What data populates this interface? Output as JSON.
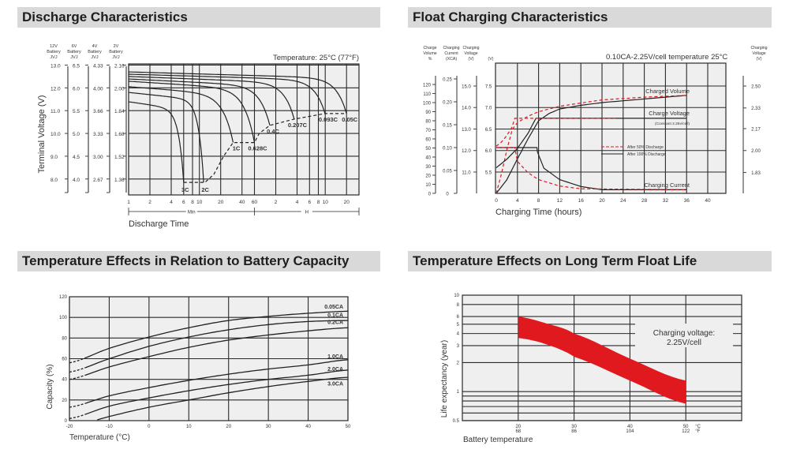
{
  "colors": {
    "header_bg": "#d9d9d9",
    "plot_bg": "#efefef",
    "grid": "#2a2a2a",
    "curve": "#222222",
    "accent_red": "#e0191f"
  },
  "chart_data": [
    {
      "type": "line",
      "title": "Discharge Characteristics",
      "subtitle": "Temperature: 25°C (77°F)",
      "xlabel": "Discharge Time",
      "ylabel": "Terminal Voltage (V)",
      "x_scale": "log",
      "x_unit_segments": [
        {
          "label": "Min",
          "from": 1,
          "to": 60
        },
        {
          "label": "H",
          "from": 60,
          "to": 1800
        }
      ],
      "x_ticks_minutes": [
        1,
        2,
        4,
        6,
        8,
        10,
        20,
        40,
        60,
        120,
        240,
        360,
        480,
        600,
        1200
      ],
      "x_tick_labels": [
        "1",
        "2",
        "4",
        "6",
        "8",
        "10",
        "20",
        "40",
        "60",
        "2",
        "4",
        "6",
        "8",
        "10",
        "20"
      ],
      "xlim_minutes": [
        1,
        1800
      ],
      "ylim": [
        7.3,
        13.05
      ],
      "grid": true,
      "voltage_scales": [
        {
          "header": [
            "12V",
            "Battery",
            "JVJ"
          ],
          "ticks": [
            "13.0",
            "12.0",
            "11.0",
            "10.0",
            "9.0",
            "8.0"
          ]
        },
        {
          "header": [
            "6V",
            "Battery",
            "JVJ"
          ],
          "ticks": [
            "6.5",
            "6.0",
            "5.5",
            "5.0",
            "4.5",
            "4.0"
          ]
        },
        {
          "header": [
            "4V",
            "Battery",
            "JVJ"
          ],
          "ticks": [
            "4.33",
            "4.00",
            "3.66",
            "3.33",
            "3.00",
            "2.67"
          ]
        },
        {
          "header": [
            "2V",
            "Battery",
            "JVJ"
          ],
          "ticks": [
            "2.16",
            "2.00",
            "1.84",
            "1.68",
            "1.52",
            "1.36"
          ]
        }
      ],
      "y_tick_values": [
        13,
        12,
        11,
        10,
        9,
        8
      ],
      "series": [
        {
          "name": "3C",
          "start_voltage": 11.39,
          "end_minutes": 6,
          "end_voltage": 7.85
        },
        {
          "name": "2C",
          "start_voltage": 11.8,
          "end_minutes": 11.5,
          "end_voltage": 7.85
        },
        {
          "name": "1C",
          "start_voltage": 12.05,
          "end_minutes": 30,
          "end_voltage": 9.6
        },
        {
          "name": "0.628C",
          "start_voltage": 12.29,
          "end_minutes": 60,
          "end_voltage": 9.6
        },
        {
          "name": "0.4C",
          "start_voltage": 12.39,
          "end_minutes": 99,
          "end_voltage": 10.35
        },
        {
          "name": "0.207C",
          "start_voltage": 12.5,
          "end_minutes": 219,
          "end_voltage": 10.63
        },
        {
          "name": "0.093C",
          "start_voltage": 12.6,
          "end_minutes": 597,
          "end_voltage": 10.87
        },
        {
          "name": "0.05C",
          "start_voltage": 12.7,
          "end_minutes": 1200,
          "end_voltage": 10.87
        }
      ],
      "final_voltage_line": [
        [
          6,
          7.85
        ],
        [
          12,
          7.85
        ],
        [
          16,
          8.2
        ],
        [
          22,
          9.0
        ],
        [
          30,
          9.6
        ],
        [
          60,
          9.6
        ],
        [
          70,
          10.0
        ],
        [
          99,
          10.35
        ],
        [
          219,
          10.63
        ],
        [
          597,
          10.87
        ],
        [
          1200,
          10.87
        ]
      ]
    },
    {
      "type": "line",
      "title": "Float Charging Characteristics",
      "subtitle": "0.10CA-2.25V/cell  temperature 25°C",
      "xlabel": "Charging Time (hours)",
      "xlim": [
        0,
        43.4
      ],
      "x_ticks": [
        0,
        4,
        8,
        12,
        16,
        20,
        24,
        28,
        32,
        36,
        40
      ],
      "grid": true,
      "axes": {
        "charge_volume": {
          "header": [
            "Charge",
            "Volume",
            "%"
          ],
          "ticks": [
            0,
            10,
            20,
            30,
            40,
            50,
            60,
            70,
            80,
            90,
            100,
            110,
            120
          ]
        },
        "charging_current": {
          "header": [
            "Charging",
            "Current",
            "(XCA)"
          ],
          "ticks": [
            "0",
            "0.05",
            "0.10",
            "0.15",
            "0.20",
            "0.25"
          ]
        },
        "charging_voltage_12v": {
          "header": [
            "Charging",
            "Voltage",
            "(V)"
          ],
          "ticks": [
            "11.0",
            "12.0",
            "13.0",
            "14.0",
            "15.0"
          ]
        },
        "charging_voltage_6v": {
          "header": [
            "(V)"
          ],
          "ticks": [
            "5.5",
            "6.0",
            "6.5",
            "7.0",
            "7.5"
          ]
        },
        "charging_voltage_cell": {
          "header": [
            "Charging",
            "Voltage",
            "(V)"
          ],
          "ticks": [
            "1.83",
            "2.00",
            "2.17",
            "2.33",
            "2.50"
          ]
        }
      },
      "labels": {
        "charged_volume": "Charged Volume",
        "charge_voltage": "Charge Voltage",
        "charge_voltage_note": "(Constant 2.25v/cell)",
        "charging_current": "Charging Current"
      },
      "legend": [
        {
          "name": "After  50% Discharge",
          "style": "dashed-red"
        },
        {
          "name": "After 100% Discharge",
          "style": "solid-black"
        }
      ],
      "series": [
        {
          "quantity": "charged_volume_percent",
          "condition": "After 100% Discharge",
          "points": [
            [
              0,
              0
            ],
            [
              2,
              15
            ],
            [
              4,
              38
            ],
            [
              6,
              60
            ],
            [
              8,
              80
            ],
            [
              10,
              88
            ],
            [
              12,
              93
            ],
            [
              16,
              97
            ],
            [
              20,
              100
            ],
            [
              28,
              104
            ],
            [
              36,
              108
            ]
          ]
        },
        {
          "quantity": "charged_volume_percent",
          "condition": "After  50% Discharge",
          "points": [
            [
              0,
              0
            ],
            [
              1,
              22
            ],
            [
              2,
              48
            ],
            [
              3,
              70
            ],
            [
              4,
              78
            ],
            [
              6,
              85
            ],
            [
              8,
              90
            ],
            [
              12,
              96
            ],
            [
              20,
              103
            ],
            [
              28,
              106
            ],
            [
              36,
              108
            ]
          ]
        },
        {
          "quantity": "charge_voltage_6v",
          "condition": "After 100% Discharge",
          "points": [
            [
              0,
              5.6
            ],
            [
              2,
              5.8
            ],
            [
              4,
              6.05
            ],
            [
              6,
              6.4
            ],
            [
              7.5,
              6.75
            ],
            [
              36,
              6.75
            ]
          ]
        },
        {
          "quantity": "charge_voltage_6v",
          "condition": "After  50% Discharge",
          "points": [
            [
              0,
              6.1
            ],
            [
              1,
              6.2
            ],
            [
              2,
              6.35
            ],
            [
              3,
              6.55
            ],
            [
              3.5,
              6.75
            ],
            [
              22.5,
              6.75
            ]
          ]
        },
        {
          "quantity": "charging_current_ca",
          "condition": "After 100% Discharge",
          "points": [
            [
              0,
              0.1
            ],
            [
              7.7,
              0.1
            ],
            [
              7.8,
              0.09
            ],
            [
              9,
              0.055
            ],
            [
              12,
              0.03
            ],
            [
              16,
              0.015
            ],
            [
              20,
              0.008
            ],
            [
              36,
              0.008
            ]
          ]
        },
        {
          "quantity": "charging_current_ca",
          "condition": "After  50% Discharge",
          "points": [
            [
              0,
              0.1
            ],
            [
              3.5,
              0.1
            ],
            [
              4,
              0.07
            ],
            [
              6,
              0.045
            ],
            [
              8,
              0.03
            ],
            [
              12,
              0.016
            ],
            [
              16,
              0.01
            ],
            [
              36,
              0.008
            ]
          ]
        }
      ]
    },
    {
      "type": "line",
      "title": "Temperature Effects in Relation to Battery Capacity",
      "xlabel": "Temperature (°C)",
      "ylabel": "Capacity (%)",
      "xlim": [
        -20,
        50
      ],
      "ylim": [
        0,
        120
      ],
      "x_ticks": [
        -20,
        -10,
        0,
        10,
        20,
        30,
        40,
        50
      ],
      "y_ticks": [
        0,
        20,
        40,
        60,
        80,
        100,
        120
      ],
      "grid": true,
      "x": [
        -20,
        -10,
        0,
        10,
        20,
        30,
        40,
        50
      ],
      "series": [
        {
          "name": "0.05CA",
          "values": [
            56,
            70,
            81,
            90,
            97,
            101,
            104,
            106
          ]
        },
        {
          "name": "0.1CA",
          "values": [
            47,
            60,
            72,
            81,
            88,
            93,
            96,
            97
          ]
        },
        {
          "name": "0.2CA",
          "values": [
            40,
            52,
            62,
            71,
            78,
            83,
            87,
            90
          ]
        },
        {
          "name": "1.0CA",
          "values": [
            13,
            24,
            32,
            39,
            45,
            50,
            54,
            59
          ]
        },
        {
          "name": "2.0CA",
          "values": [
            2,
            14,
            22,
            29,
            35,
            40,
            44,
            49
          ]
        },
        {
          "name": "3.0CA",
          "values": [
            -6,
            4,
            13,
            20,
            27,
            33,
            38,
            42
          ]
        }
      ]
    },
    {
      "type": "area",
      "title": "Temperature Effects on Long Term Float Life",
      "xlabel": "Battery temperature",
      "ylabel": "Life expectancy (year)",
      "annotation": [
        "Charging voltage:",
        "2.25V/cell"
      ],
      "y_scale": "log",
      "xlim": [
        10,
        60
      ],
      "ylim": [
        0.5,
        10
      ],
      "y_ticks": [
        0.5,
        1,
        2,
        3,
        4,
        5,
        6,
        8,
        10
      ],
      "y_gridlines": [
        0.5,
        0.6,
        0.7,
        0.8,
        0.9,
        1,
        2,
        3,
        4,
        5,
        6,
        8,
        10
      ],
      "x_ticks": [
        {
          "c": "20",
          "f": "68"
        },
        {
          "c": "30",
          "f": "86"
        },
        {
          "c": "40",
          "f": "104"
        },
        {
          "c": "50",
          "f": "122"
        }
      ],
      "x_unit_c": "°C",
      "x_unit_f": "°F",
      "grid": true,
      "band": {
        "x": [
          20,
          25,
          30,
          40,
          50
        ],
        "upper": [
          6.0,
          5.1,
          4.0,
          2.2,
          1.3
        ],
        "lower": [
          3.6,
          3.1,
          2.3,
          1.3,
          0.75
        ]
      }
    }
  ]
}
